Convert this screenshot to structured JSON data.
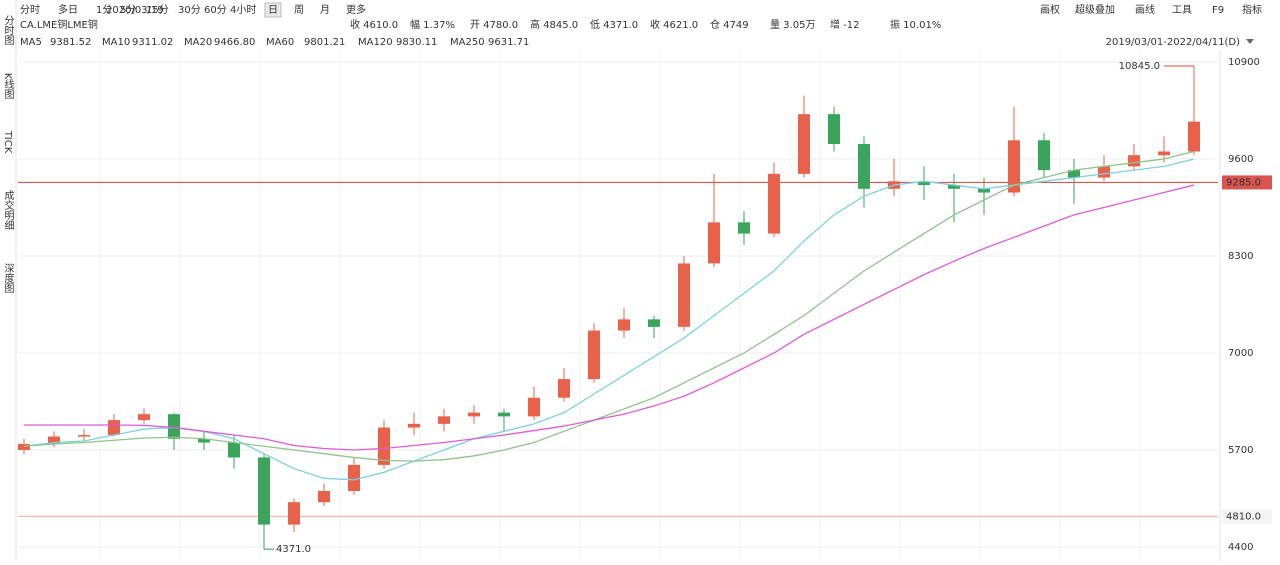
{
  "toolbar": {
    "periods": [
      "分时",
      "多日",
      "1分",
      "5分",
      "15分",
      "30分",
      "60分",
      "4小时",
      "日",
      "周",
      "月",
      "更多"
    ],
    "tools": [
      "画权",
      "超级叠加",
      "画线",
      "工具",
      "F9",
      "指标"
    ]
  },
  "symbol": "CA.LME铜LME铜",
  "date": "2020/03/19",
  "quote": [
    {
      "text": "收 4610.0",
      "color": "#e0483a"
    },
    {
      "text": "幅 1.37%",
      "color": "#e0483a"
    },
    {
      "text": "开 4780.0",
      "color": "#e0483a"
    },
    {
      "text": "高 4845.0",
      "color": "#e0483a"
    },
    {
      "text": "低 4371.0",
      "color": "#2a9d4a"
    },
    {
      "text": "收 4621.0",
      "color": "#e0483a"
    },
    {
      "text": "仓 4749",
      "color": "#333333"
    },
    {
      "text": "量 3.05万",
      "color": "#333333"
    },
    {
      "text": "增 -12",
      "color": "#2a9d4a"
    },
    {
      "text": "振 10.01%",
      "color": "#333333"
    }
  ],
  "ma_legend": [
    {
      "name": "MA5",
      "value": "9381.52",
      "color": "#e0483a"
    },
    {
      "name": "MA10",
      "value": "9311.02",
      "color": "#3b4fa8"
    },
    {
      "name": "MA20",
      "value": "9466.80",
      "color": "#5a7fd6"
    }
  ],
  "date_range": "2019/03/01-2022/04/11(D)",
  "side_tabs": [
    "分时图",
    "K线图",
    "TICK",
    "成交明细",
    "深度图"
  ],
  "chart_data": {
    "type": "candlestick",
    "ylim": [
      4212,
      11060
    ],
    "yticks": [
      4400,
      5700,
      7000,
      8300,
      9600,
      10900
    ],
    "grid": true,
    "up_color": "#e8614a",
    "down_color": "#3aa35c",
    "candles": [
      [
        5700,
        5850,
        5650,
        5780
      ],
      [
        5780,
        5950,
        5740,
        5880
      ],
      [
        5880,
        5980,
        5820,
        5900
      ],
      [
        5900,
        6180,
        5880,
        6100
      ],
      [
        6100,
        6260,
        6050,
        6180
      ],
      [
        6180,
        6200,
        5700,
        5850
      ],
      [
        5850,
        5950,
        5700,
        5800
      ],
      [
        5800,
        5900,
        5450,
        5600
      ],
      [
        5600,
        5650,
        4371,
        4700
      ],
      [
        4700,
        5050,
        4600,
        5000
      ],
      [
        5000,
        5250,
        4950,
        5150
      ],
      [
        5150,
        5600,
        5100,
        5500
      ],
      [
        5500,
        6100,
        5450,
        6000
      ],
      [
        6000,
        6200,
        5900,
        6050
      ],
      [
        6050,
        6250,
        5950,
        6150
      ],
      [
        6150,
        6300,
        6050,
        6200
      ],
      [
        6200,
        6250,
        5950,
        6150
      ],
      [
        6150,
        6550,
        6100,
        6400
      ],
      [
        6400,
        6800,
        6350,
        6650
      ],
      [
        6650,
        7400,
        6600,
        7300
      ],
      [
        7300,
        7600,
        7200,
        7450
      ],
      [
        7450,
        7500,
        7200,
        7350
      ],
      [
        7350,
        8300,
        7300,
        8200
      ],
      [
        8200,
        9400,
        8150,
        8750
      ],
      [
        8750,
        8900,
        8450,
        8600
      ],
      [
        8600,
        9550,
        8550,
        9400
      ],
      [
        9400,
        10450,
        9350,
        10200
      ],
      [
        10200,
        10300,
        9700,
        9800
      ],
      [
        9800,
        9900,
        8950,
        9200
      ],
      [
        9200,
        9600,
        9100,
        9300
      ],
      [
        9300,
        9500,
        9050,
        9250
      ],
      [
        9250,
        9400,
        8750,
        9200
      ],
      [
        9200,
        9350,
        8850,
        9150
      ],
      [
        9150,
        10300,
        9100,
        9850
      ],
      [
        9850,
        9950,
        9350,
        9450
      ],
      [
        9450,
        9600,
        9000,
        9350
      ],
      [
        9350,
        9650,
        9300,
        9500
      ],
      [
        9500,
        9800,
        9450,
        9650
      ],
      [
        9650,
        9900,
        9550,
        9700
      ],
      [
        9700,
        10845,
        9650,
        10100
      ]
    ],
    "series": [
      {
        "name": "MA60",
        "legend_value": "9801.21",
        "color": "#7fd0e0",
        "values": [
          5750,
          5800,
          5820,
          5900,
          5980,
          6000,
          5950,
          5850,
          5650,
          5450,
          5320,
          5300,
          5400,
          5550,
          5700,
          5850,
          5950,
          6050,
          6200,
          6450,
          6700,
          6950,
          7200,
          7500,
          7800,
          8100,
          8500,
          8850,
          9100,
          9250,
          9300,
          9250,
          9200,
          9250,
          9300,
          9350,
          9400,
          9450,
          9500,
          9600
        ]
      },
      {
        "name": "MA120",
        "legend_value": "9830.11",
        "color": "#8fc48a",
        "values": [
          5750,
          5780,
          5800,
          5830,
          5860,
          5870,
          5850,
          5800,
          5750,
          5700,
          5650,
          5600,
          5560,
          5550,
          5570,
          5620,
          5700,
          5800,
          5950,
          6100,
          6250,
          6400,
          6600,
          6800,
          7000,
          7250,
          7500,
          7800,
          8100,
          8350,
          8600,
          8850,
          9050,
          9250,
          9350,
          9450,
          9500,
          9550,
          9600,
          9700
        ]
      },
      {
        "name": "MA250",
        "legend_value": "9631.71",
        "color": "#e05ad8",
        "values": [
          6035,
          6035,
          6035,
          6035,
          6030,
          6000,
          5950,
          5900,
          5850,
          5760,
          5720,
          5700,
          5720,
          5760,
          5800,
          5850,
          5900,
          5960,
          6020,
          6100,
          6180,
          6290,
          6420,
          6600,
          6800,
          7000,
          7250,
          7450,
          7650,
          7850,
          8050,
          8230,
          8400,
          8550,
          8700,
          8850,
          8950,
          9050,
          9150,
          9250
        ]
      }
    ],
    "hlines": [
      {
        "value": 9285,
        "label": "9285.0",
        "color": "#d9534f"
      },
      {
        "value": 4810,
        "label": "4810.0",
        "color": "#f3b8a8"
      }
    ],
    "annotations": [
      {
        "value": 10845,
        "label": "10845.0",
        "color": "#e0483a"
      },
      {
        "value": 4371,
        "label": "4371.0",
        "color": "#2a9d4a"
      }
    ]
  }
}
